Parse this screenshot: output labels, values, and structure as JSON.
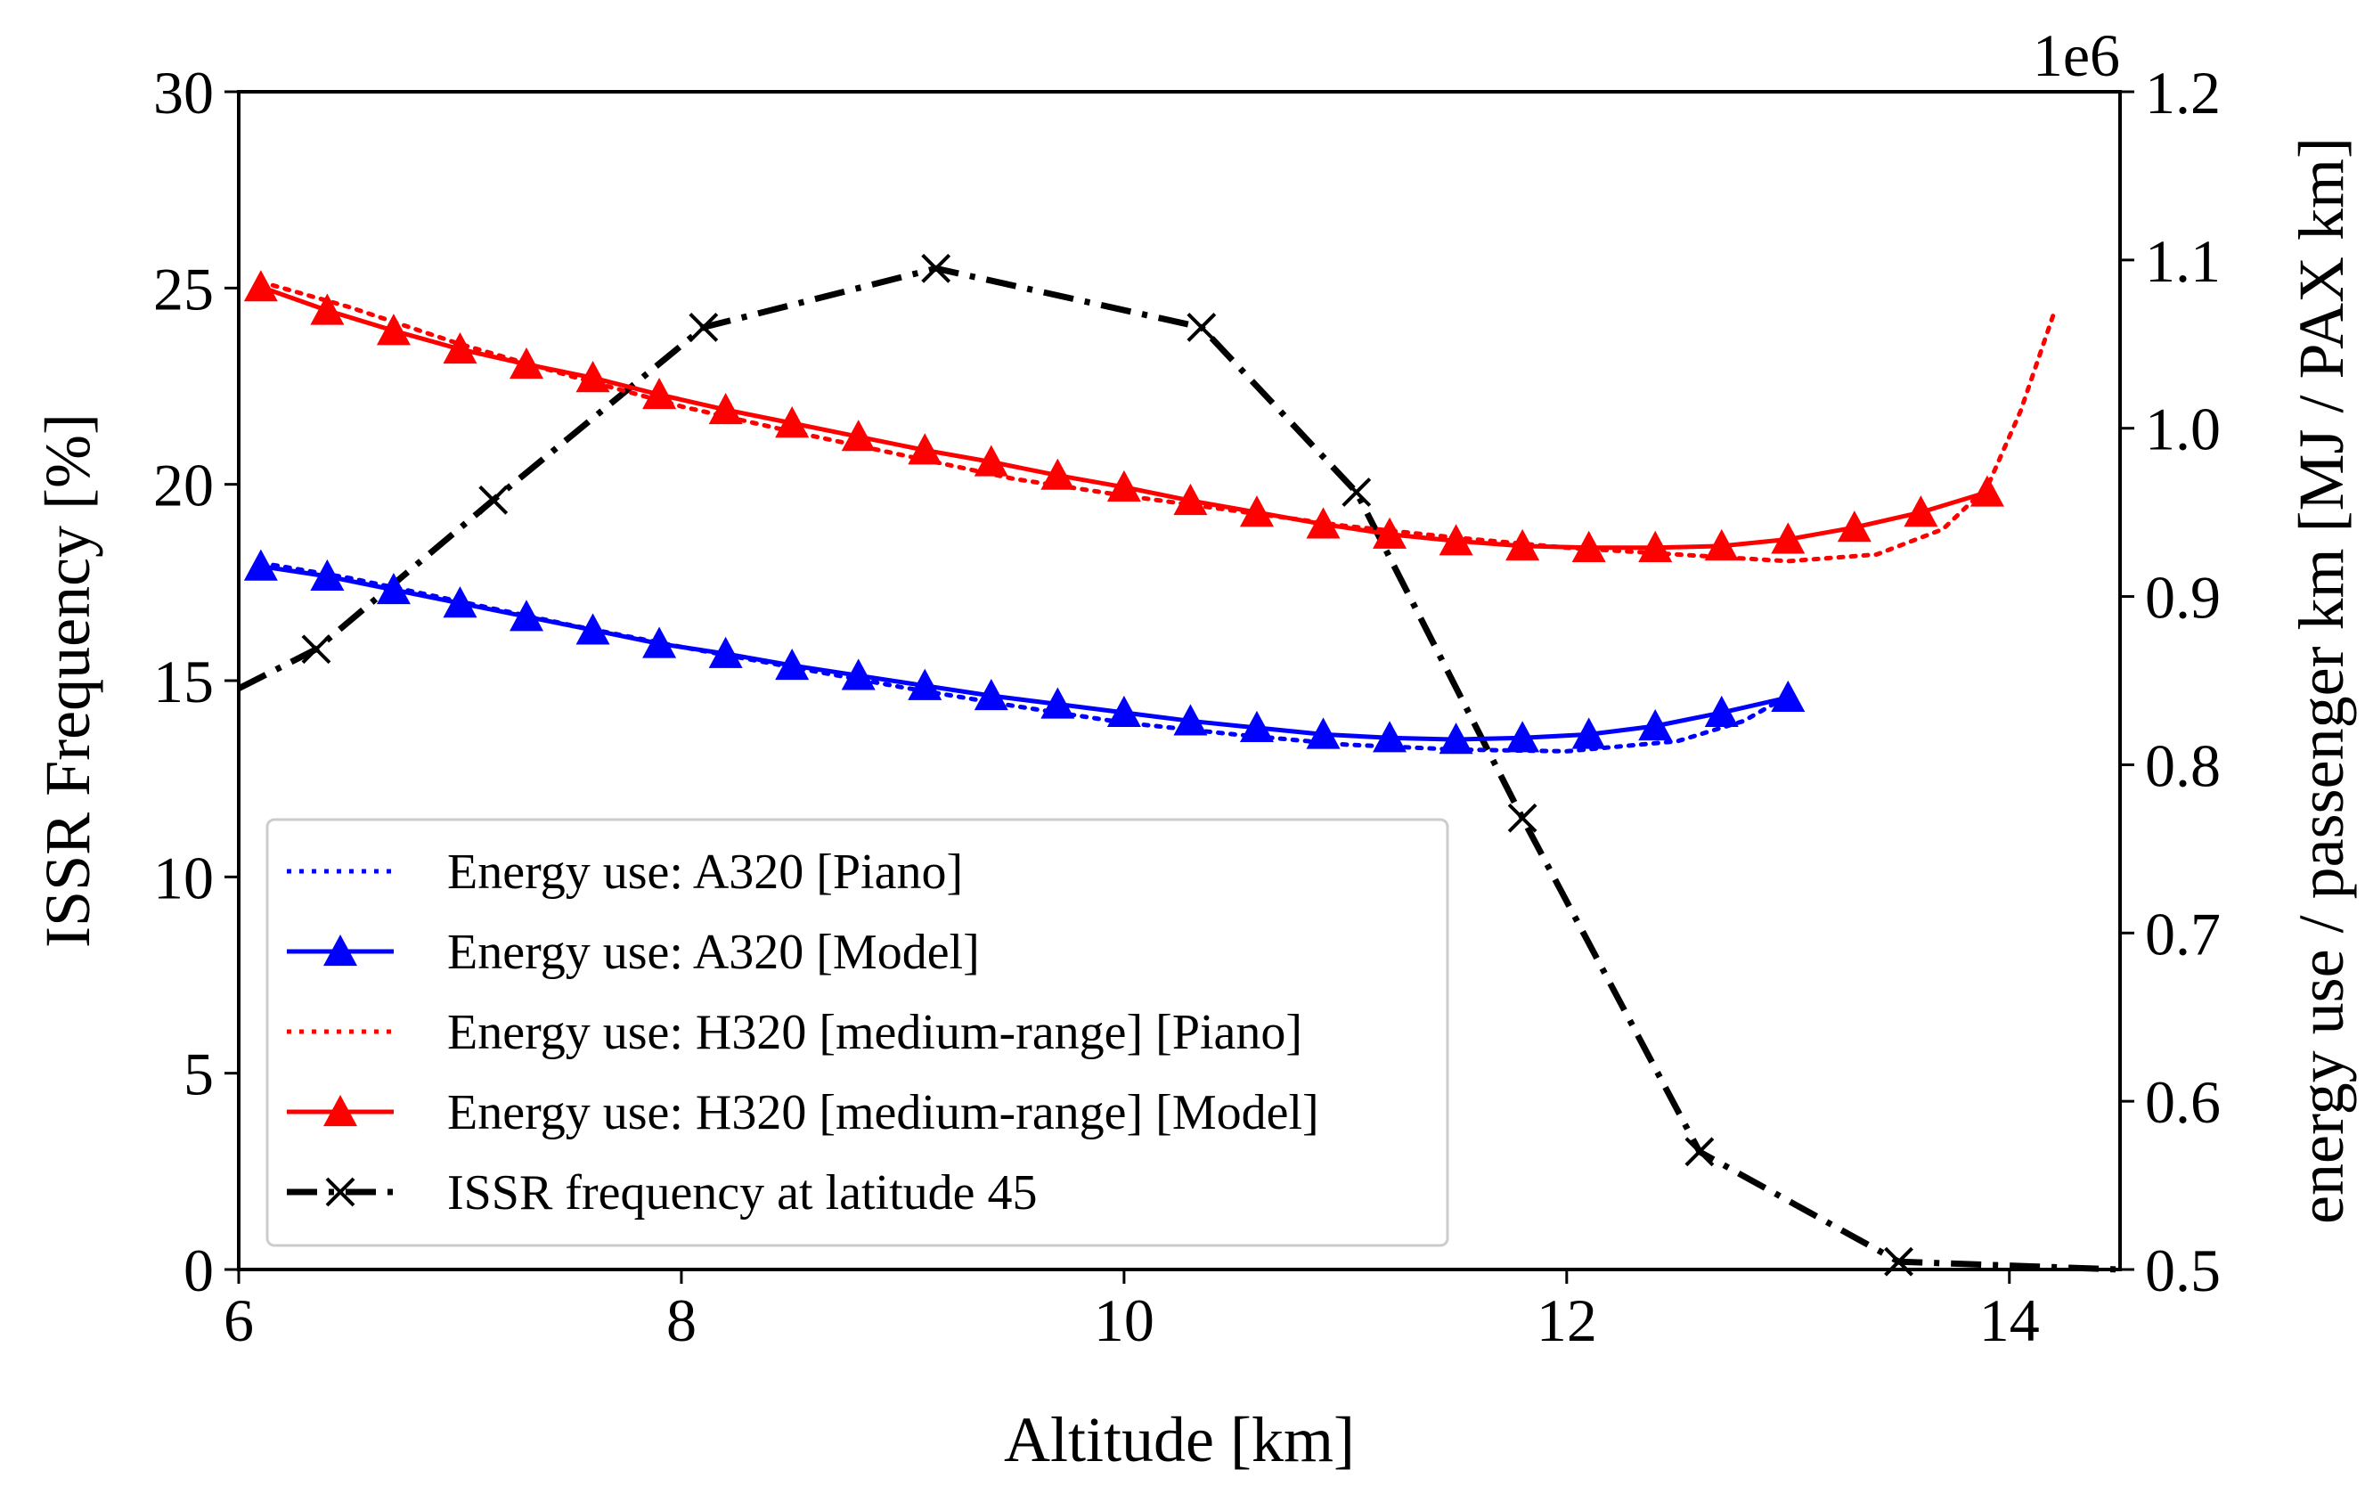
{
  "chart_data": {
    "type": "line",
    "xlabel": "Altitude [km]",
    "ylabel": "ISSR Frequency [%]",
    "y2label": "energy use / passenger km [MJ / PAX km]",
    "y2_offset_text": "1e6",
    "xlim": [
      6,
      14.5
    ],
    "ylim": [
      0,
      30
    ],
    "y2lim": [
      0.5,
      1.2
    ],
    "xticks": [
      "6",
      "8",
      "10",
      "12",
      "14"
    ],
    "yticks": [
      "0",
      "5",
      "10",
      "15",
      "20",
      "25",
      "30"
    ],
    "y2ticks": [
      "0.5",
      "0.6",
      "0.7",
      "0.8",
      "0.9",
      "1.0",
      "1.1",
      "1.2"
    ],
    "grid": false,
    "legend_position": "lower-left",
    "series": [
      {
        "name": "Energy use: A320 [Piano]",
        "axis": "right",
        "color": "#0000ff",
        "style": "dotted",
        "marker": "none",
        "x": [
          6.1,
          6.5,
          7.0,
          7.5,
          8.0,
          8.5,
          9.0,
          9.5,
          10.0,
          10.5,
          11.0,
          11.5,
          12.0,
          12.5,
          12.8,
          13.0
        ],
        "y": [
          0.92,
          0.911,
          0.897,
          0.883,
          0.87,
          0.858,
          0.846,
          0.835,
          0.825,
          0.818,
          0.812,
          0.809,
          0.808,
          0.814,
          0.826,
          0.841
        ]
      },
      {
        "name": "Energy use: A320 [Model]",
        "axis": "right",
        "color": "#0000ff",
        "style": "solid",
        "marker": "triangle",
        "x": [
          6.1,
          6.4,
          6.7,
          7.0,
          7.3,
          7.6,
          7.9,
          8.2,
          8.5,
          8.8,
          9.1,
          9.4,
          9.7,
          10.0,
          10.3,
          10.6,
          10.9,
          11.2,
          11.5,
          11.8,
          12.1,
          12.4,
          12.7,
          13.0
        ],
        "y": [
          0.918,
          0.912,
          0.904,
          0.896,
          0.888,
          0.88,
          0.872,
          0.866,
          0.859,
          0.853,
          0.847,
          0.841,
          0.836,
          0.831,
          0.826,
          0.822,
          0.818,
          0.816,
          0.815,
          0.816,
          0.818,
          0.823,
          0.831,
          0.84
        ]
      },
      {
        "name": "Energy use: H320 [medium-range] [Piano]",
        "axis": "right",
        "color": "#ff0000",
        "style": "dotted",
        "marker": "none",
        "x": [
          6.1,
          6.5,
          7.0,
          7.5,
          8.0,
          8.5,
          9.0,
          9.5,
          10.0,
          10.5,
          11.0,
          11.5,
          12.0,
          12.5,
          13.0,
          13.4,
          13.7,
          13.9,
          14.05,
          14.2
        ],
        "y": [
          1.087,
          1.072,
          1.05,
          1.031,
          1.013,
          0.998,
          0.984,
          0.97,
          0.96,
          0.951,
          0.942,
          0.935,
          0.929,
          0.925,
          0.921,
          0.925,
          0.94,
          0.965,
          1.01,
          1.068
        ]
      },
      {
        "name": "Energy use: H320 [medium-range] [Model]",
        "axis": "right",
        "color": "#ff0000",
        "style": "solid",
        "marker": "triangle",
        "x": [
          6.1,
          6.4,
          6.7,
          7.0,
          7.3,
          7.6,
          7.9,
          8.2,
          8.5,
          8.8,
          9.1,
          9.4,
          9.7,
          10.0,
          10.3,
          10.6,
          10.9,
          11.2,
          11.5,
          11.8,
          12.1,
          12.4,
          12.7,
          13.0,
          13.3,
          13.6,
          13.9
        ],
        "y": [
          1.084,
          1.07,
          1.058,
          1.047,
          1.038,
          1.03,
          1.02,
          1.011,
          1.003,
          0.995,
          0.987,
          0.98,
          0.972,
          0.965,
          0.957,
          0.95,
          0.943,
          0.937,
          0.933,
          0.93,
          0.929,
          0.929,
          0.93,
          0.934,
          0.941,
          0.95,
          0.962
        ]
      },
      {
        "name": "ISSR frequency at latitude 45",
        "axis": "left",
        "color": "#000000",
        "style": "dashdot",
        "marker": "x",
        "x": [
          6.0,
          6.35,
          7.15,
          8.1,
          9.15,
          10.35,
          11.05,
          11.8,
          12.6,
          13.5,
          14.5
        ],
        "y": [
          14.8,
          15.8,
          19.6,
          24.0,
          25.5,
          24.0,
          19.8,
          11.5,
          3.0,
          0.2,
          0.0
        ],
        "marker_indices": [
          1,
          2,
          3,
          4,
          5,
          6,
          7,
          8,
          9
        ]
      }
    ]
  }
}
